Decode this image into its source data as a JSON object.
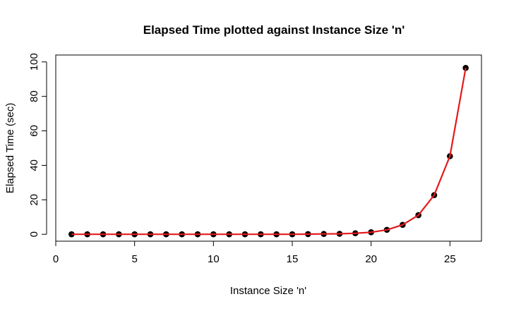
{
  "chart_data": {
    "type": "line",
    "title": "Elapsed Time plotted against Instance Size 'n'",
    "xlabel": "Instance Size 'n'",
    "ylabel": "Elapsed Time (sec)",
    "xlim": [
      0,
      27
    ],
    "ylim": [
      -4,
      104
    ],
    "x_ticks": [
      "0",
      "5",
      "10",
      "15",
      "20",
      "25"
    ],
    "y_ticks": [
      "0",
      "20",
      "40",
      "60",
      "80",
      "100"
    ],
    "grid": false,
    "line_color": "#e41a1c",
    "point_color": "#000000",
    "series": [
      {
        "x": [
          1,
          2,
          3,
          4,
          5,
          6,
          7,
          8,
          9,
          10,
          11,
          12,
          13,
          14,
          15,
          16,
          17,
          18,
          19,
          20,
          21,
          22,
          23,
          24,
          25,
          26
        ],
        "y": [
          0,
          0,
          0,
          0,
          0,
          0,
          0,
          0,
          0,
          0,
          0,
          0,
          0,
          0,
          0,
          0.1,
          0.2,
          0.3,
          0.6,
          1.2,
          2.6,
          5.5,
          11.1,
          22.7,
          45.3,
          96.5
        ]
      }
    ]
  }
}
